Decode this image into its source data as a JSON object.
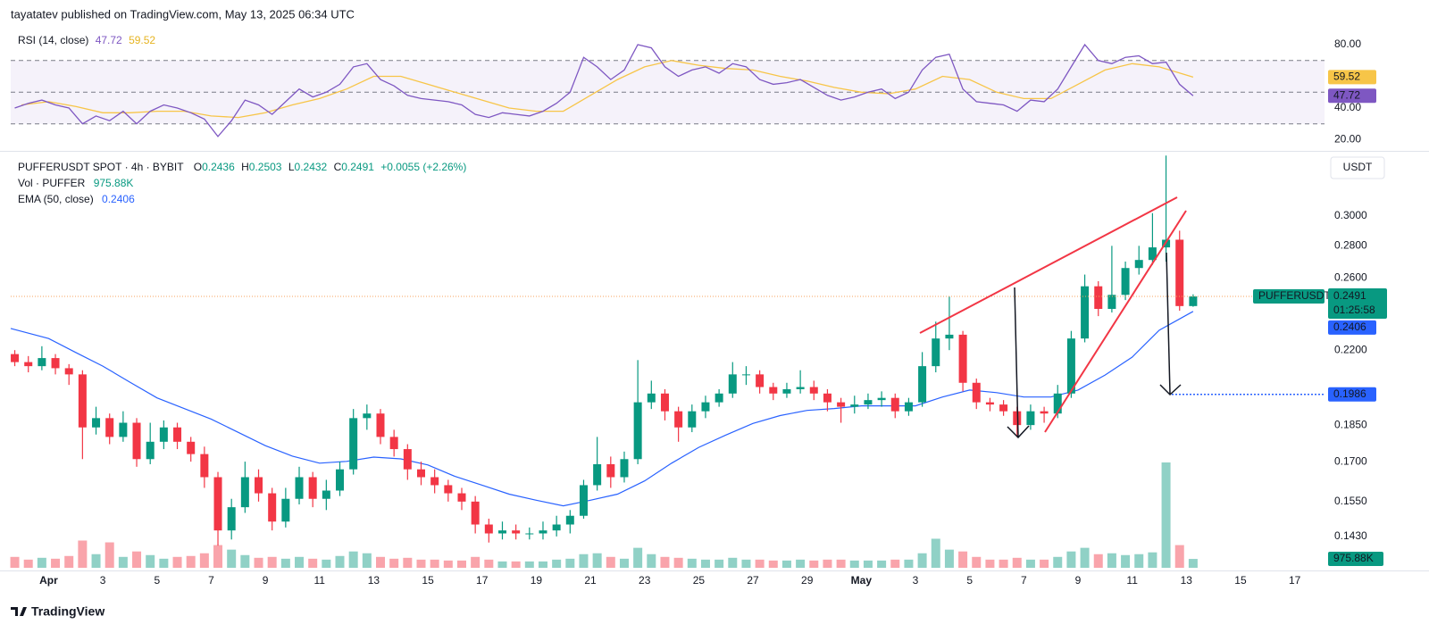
{
  "header": {
    "publisher": "tayatatev published on TradingView.com, May 13, 2025 06:34 UTC"
  },
  "footer": {
    "brand": "TradingView"
  },
  "chart_data": {
    "type": "candlestick",
    "title": "PUFFERUSDT SPOT · 4h · BYBIT",
    "ohlc_labels": [
      "O",
      "H",
      "L",
      "C"
    ],
    "change": "+0.0055 (+2.26%)",
    "currency": "USDT",
    "symbol_label": "PUFFERUSDT",
    "countdown": "01:25:58",
    "up_color": "#089981",
    "down_color": "#f23645",
    "log_scale": true,
    "grid": false,
    "xlim": [
      -0.4,
      48.1
    ],
    "ylim": [
      0.133,
      0.3466
    ],
    "xticks": [
      {
        "value": 1,
        "label": "Apr"
      },
      3,
      5,
      7,
      9,
      11,
      13,
      15,
      17,
      19,
      21,
      23,
      25,
      27,
      29,
      {
        "value": 31,
        "label": "May"
      },
      {
        "value": 33,
        "label": "3"
      },
      {
        "value": 35,
        "label": "5"
      },
      {
        "value": 37,
        "label": "7"
      },
      {
        "value": 39,
        "label": "9"
      },
      {
        "value": 41,
        "label": "11"
      },
      {
        "value": 43,
        "label": "13"
      },
      {
        "value": 45,
        "label": "15"
      },
      {
        "value": 47,
        "label": "17"
      }
    ],
    "yticks": [
      {
        "value": 0.3,
        "label": "0.3000"
      },
      {
        "value": 0.28,
        "label": "0.2800"
      },
      {
        "value": 0.26,
        "label": "0.2600"
      },
      {
        "value": 0.22,
        "label": "0.2200"
      },
      {
        "value": 0.185,
        "label": "0.1850"
      },
      {
        "value": 0.17,
        "label": "0.1700"
      },
      {
        "value": 0.155,
        "label": "0.1550"
      },
      {
        "value": 0.143,
        "label": "0.1430"
      }
    ],
    "x": [
      -0.25,
      0.25,
      0.75,
      1.25,
      1.75,
      2.25,
      2.75,
      3.25,
      3.75,
      4.25,
      4.75,
      5.25,
      5.75,
      6.25,
      6.75,
      7.25,
      7.75,
      8.25,
      8.75,
      9.25,
      9.75,
      10.25,
      10.75,
      11.25,
      11.75,
      12.25,
      12.75,
      13.25,
      13.75,
      14.25,
      14.75,
      15.25,
      15.75,
      16.25,
      16.75,
      17.25,
      17.75,
      18.25,
      18.75,
      19.25,
      19.75,
      20.25,
      20.75,
      21.25,
      21.75,
      22.25,
      22.75,
      23.25,
      23.75,
      24.25,
      24.75,
      25.25,
      25.75,
      26.25,
      26.75,
      27.25,
      27.75,
      28.25,
      28.75,
      29.25,
      29.75,
      30.25,
      30.75,
      31.25,
      31.75,
      32.25,
      32.75,
      33.25,
      33.75,
      34.25,
      34.75,
      35.25,
      35.75,
      36.25,
      36.75,
      37.25,
      37.75,
      38.25,
      38.75,
      39.25,
      39.75,
      40.25,
      40.75,
      41.25,
      41.75,
      42.25,
      42.75,
      43.25
    ],
    "open": [
      0.218,
      0.214,
      0.212,
      0.216,
      0.211,
      0.208,
      0.184,
      0.188,
      0.18,
      0.186,
      0.171,
      0.178,
      0.184,
      0.178,
      0.173,
      0.164,
      0.145,
      0.153,
      0.164,
      0.158,
      0.148,
      0.156,
      0.164,
      0.156,
      0.159,
      0.167,
      0.188,
      0.19,
      0.18,
      0.175,
      0.167,
      0.164,
      0.161,
      0.158,
      0.155,
      0.147,
      0.144,
      0.145,
      0.144,
      0.144,
      0.145,
      0.147,
      0.15,
      0.161,
      0.169,
      0.164,
      0.171,
      0.195,
      0.199,
      0.191,
      0.184,
      0.191,
      0.195,
      0.199,
      0.208,
      0.208,
      0.202,
      0.199,
      0.201,
      0.202,
      0.199,
      0.195,
      0.193,
      0.194,
      0.196,
      0.197,
      0.191,
      0.195,
      0.212,
      0.226,
      0.228,
      0.204,
      0.195,
      0.194,
      0.191,
      0.185,
      0.191,
      0.19,
      0.199,
      0.226,
      0.255,
      0.242,
      0.25,
      0.266,
      0.271,
      0.279,
      0.284,
      0.2436
    ],
    "high": [
      0.22,
      0.217,
      0.222,
      0.218,
      0.213,
      0.21,
      0.193,
      0.19,
      0.191,
      0.188,
      0.186,
      0.187,
      0.186,
      0.18,
      0.176,
      0.166,
      0.156,
      0.17,
      0.167,
      0.16,
      0.16,
      0.168,
      0.166,
      0.163,
      0.17,
      0.192,
      0.194,
      0.192,
      0.183,
      0.177,
      0.17,
      0.167,
      0.163,
      0.16,
      0.157,
      0.149,
      0.148,
      0.147,
      0.146,
      0.148,
      0.15,
      0.152,
      0.163,
      0.18,
      0.172,
      0.174,
      0.215,
      0.205,
      0.201,
      0.193,
      0.194,
      0.198,
      0.201,
      0.214,
      0.212,
      0.21,
      0.204,
      0.204,
      0.21,
      0.205,
      0.201,
      0.197,
      0.198,
      0.199,
      0.2,
      0.199,
      0.197,
      0.219,
      0.235,
      0.249,
      0.23,
      0.206,
      0.197,
      0.196,
      0.193,
      0.194,
      0.193,
      0.203,
      0.23,
      0.262,
      0.258,
      0.28,
      0.27,
      0.28,
      0.302,
      0.345,
      0.29,
      0.2503
    ],
    "low": [
      0.212,
      0.209,
      0.21,
      0.208,
      0.203,
      0.171,
      0.181,
      0.177,
      0.178,
      0.168,
      0.169,
      0.175,
      0.175,
      0.17,
      0.16,
      0.14,
      0.142,
      0.151,
      0.155,
      0.145,
      0.146,
      0.154,
      0.153,
      0.152,
      0.157,
      0.165,
      0.183,
      0.177,
      0.172,
      0.163,
      0.161,
      0.158,
      0.155,
      0.152,
      0.144,
      0.141,
      0.142,
      0.142,
      0.142,
      0.142,
      0.143,
      0.144,
      0.149,
      0.159,
      0.16,
      0.162,
      0.169,
      0.192,
      0.187,
      0.178,
      0.182,
      0.188,
      0.193,
      0.197,
      0.203,
      0.199,
      0.196,
      0.197,
      0.199,
      0.196,
      0.191,
      0.186,
      0.19,
      0.192,
      0.193,
      0.188,
      0.189,
      0.193,
      0.209,
      0.22,
      0.2,
      0.192,
      0.191,
      0.189,
      0.18,
      0.183,
      0.186,
      0.188,
      0.197,
      0.224,
      0.238,
      0.24,
      0.247,
      0.262,
      0.268,
      0.27,
      0.241,
      0.2432
    ],
    "close": [
      0.214,
      0.212,
      0.216,
      0.211,
      0.208,
      0.184,
      0.188,
      0.18,
      0.186,
      0.171,
      0.178,
      0.184,
      0.178,
      0.173,
      0.164,
      0.145,
      0.153,
      0.164,
      0.158,
      0.148,
      0.156,
      0.164,
      0.156,
      0.159,
      0.167,
      0.188,
      0.19,
      0.18,
      0.175,
      0.167,
      0.164,
      0.161,
      0.158,
      0.155,
      0.147,
      0.144,
      0.145,
      0.144,
      0.144,
      0.145,
      0.147,
      0.15,
      0.161,
      0.169,
      0.164,
      0.171,
      0.195,
      0.199,
      0.191,
      0.184,
      0.191,
      0.195,
      0.199,
      0.208,
      0.208,
      0.202,
      0.199,
      0.201,
      0.202,
      0.199,
      0.195,
      0.193,
      0.194,
      0.196,
      0.197,
      0.191,
      0.195,
      0.212,
      0.226,
      0.228,
      0.204,
      0.195,
      0.194,
      0.191,
      0.185,
      0.191,
      0.19,
      0.199,
      0.226,
      0.255,
      0.242,
      0.25,
      0.266,
      0.271,
      0.279,
      0.284,
      0.2436,
      0.2491
    ],
    "volume": {
      "name": "Vol · PUFFER",
      "last_label": "975.88K",
      "values": [
        1200000,
        900000,
        1100000,
        1000000,
        1300000,
        3000000,
        1500000,
        2800000,
        1200000,
        1800000,
        1400000,
        1000000,
        1200000,
        1300000,
        1600000,
        2500000,
        2000000,
        1400000,
        1100000,
        1200000,
        1000000,
        1200000,
        1000000,
        900000,
        1300000,
        1800000,
        1600000,
        1200000,
        1000000,
        1100000,
        900000,
        900000,
        800000,
        800000,
        1200000,
        900000,
        700000,
        700000,
        700000,
        700000,
        900000,
        1000000,
        1500000,
        1600000,
        1200000,
        1000000,
        2200000,
        1500000,
        1200000,
        1100000,
        1000000,
        900000,
        900000,
        1100000,
        900000,
        900000,
        800000,
        800000,
        900000,
        800000,
        900000,
        900000,
        800000,
        800000,
        800000,
        900000,
        900000,
        1600000,
        3200000,
        2000000,
        1800000,
        1200000,
        900000,
        900000,
        1100000,
        900000,
        900000,
        1200000,
        1800000,
        2200000,
        1500000,
        1600000,
        1400000,
        1500000,
        1700000,
        11600000,
        2500000,
        975880
      ]
    },
    "ema": {
      "name": "EMA (50, close)",
      "color": "#2962ff",
      "x": [
        -0.4,
        1,
        2,
        3,
        4,
        5,
        6,
        7,
        8,
        9,
        10,
        11,
        12,
        13,
        14,
        15,
        16,
        17,
        18,
        19,
        20,
        21,
        22,
        23,
        24,
        25,
        26,
        27,
        28,
        29,
        30,
        31,
        32,
        33,
        34,
        35,
        36,
        37,
        38,
        39,
        40,
        41,
        42,
        43.25
      ],
      "values": [
        0.2313,
        0.226,
        0.2188,
        0.212,
        0.2043,
        0.197,
        0.1922,
        0.1876,
        0.1819,
        0.1764,
        0.1722,
        0.1694,
        0.1701,
        0.1718,
        0.1711,
        0.1687,
        0.1643,
        0.161,
        0.1577,
        0.1555,
        0.1535,
        0.1555,
        0.1577,
        0.1626,
        0.1694,
        0.1757,
        0.1808,
        0.1857,
        0.1891,
        0.1914,
        0.1922,
        0.1934,
        0.1934,
        0.1934,
        0.1974,
        0.2006,
        0.1994,
        0.1974,
        0.1974,
        0.2006,
        0.2077,
        0.2165,
        0.2304,
        0.2406
      ]
    },
    "target": {
      "value": 0.1986,
      "color": "#2962ff"
    },
    "rsi": {
      "name": "RSI (14, close)",
      "color": "#7e57c2",
      "ylim": [
        15.2,
        91.3
      ],
      "yticks": [
        {
          "value": 80,
          "label": "80.00"
        },
        {
          "value": 40,
          "label": "40.00"
        },
        {
          "value": 20,
          "label": "20.00"
        }
      ],
      "bands": [
        70,
        50,
        30
      ],
      "values": [
        40,
        43,
        45,
        42,
        40,
        30,
        35,
        32,
        38,
        30,
        38,
        42,
        40,
        37,
        33,
        22,
        32,
        45,
        42,
        36,
        44,
        52,
        47,
        50,
        55,
        66,
        68,
        58,
        54,
        48,
        46,
        45,
        44,
        42,
        36,
        34,
        37,
        36,
        35,
        38,
        43,
        50,
        72,
        66,
        58,
        64,
        80,
        78,
        66,
        60,
        64,
        66,
        62,
        68,
        66,
        58,
        55,
        56,
        58,
        53,
        48,
        45,
        47,
        50,
        52,
        46,
        50,
        64,
        72,
        74,
        52,
        44,
        43,
        42,
        38,
        45,
        44,
        52,
        66,
        80,
        70,
        68,
        72,
        73,
        68,
        69,
        55,
        47.72
      ],
      "ma": {
        "color": "#f7c548",
        "x": [
          0,
          1,
          2,
          3,
          4,
          5,
          6,
          7,
          8,
          9,
          10,
          11,
          12,
          13,
          14,
          15,
          16,
          17,
          18,
          19,
          20,
          21,
          22,
          23,
          24,
          25,
          26,
          27,
          28,
          29,
          30,
          31,
          32,
          33,
          34,
          35,
          36,
          37,
          38,
          39,
          40,
          41,
          42,
          43.25
        ],
        "values": [
          42,
          44,
          41,
          37,
          37,
          38,
          38,
          35,
          34,
          37,
          42,
          46,
          52,
          60,
          60,
          55,
          50,
          45,
          40,
          38,
          38,
          48,
          58,
          66,
          70,
          67,
          65,
          64,
          60,
          57,
          53,
          50,
          49,
          52,
          60,
          58,
          50,
          46,
          46,
          55,
          64,
          68,
          66,
          59.52
        ]
      }
    }
  }
}
